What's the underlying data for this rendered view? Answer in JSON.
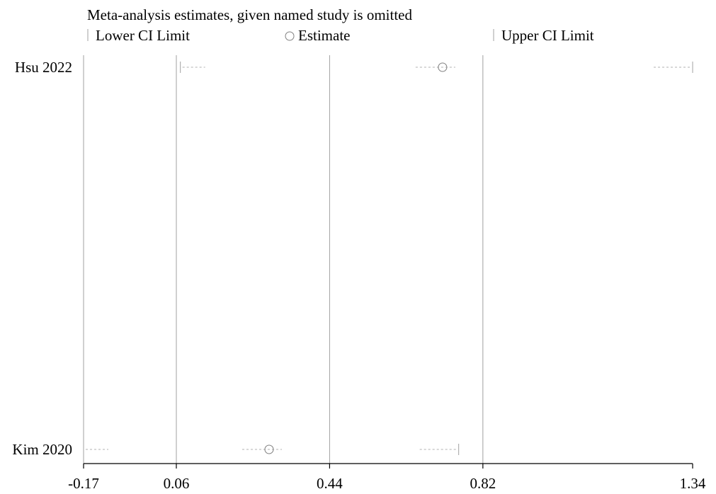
{
  "chart_data": {
    "type": "scatter",
    "title": "Meta-analysis estimates, given named study is omitted",
    "legend": {
      "placement": "top",
      "items": [
        {
          "marker": "bar",
          "label": "Lower CI Limit"
        },
        {
          "marker": "circle",
          "label": "Estimate"
        },
        {
          "marker": "bar",
          "label": "Upper CI Limit"
        }
      ]
    },
    "xlim": [
      -0.17,
      1.34
    ],
    "xticks": [
      -0.17,
      0.06,
      0.44,
      0.82,
      1.34
    ],
    "xtick_labels": [
      "-0.17",
      "0.06",
      "0.44",
      "0.82",
      "1.34"
    ],
    "reference_lines": [
      0.06,
      0.44,
      0.82
    ],
    "grid": false,
    "studies": [
      {
        "name": "Hsu 2022",
        "lower": 0.07,
        "estimate": 0.72,
        "upper": 1.34
      },
      {
        "name": "Kim 2020",
        "lower": -0.17,
        "estimate": 0.29,
        "upper": 0.76
      }
    ],
    "colors": {
      "axis": "#000000",
      "reference_line": "#a0a0a0",
      "marker": "#808080",
      "dash": "#b0b0b0"
    }
  }
}
